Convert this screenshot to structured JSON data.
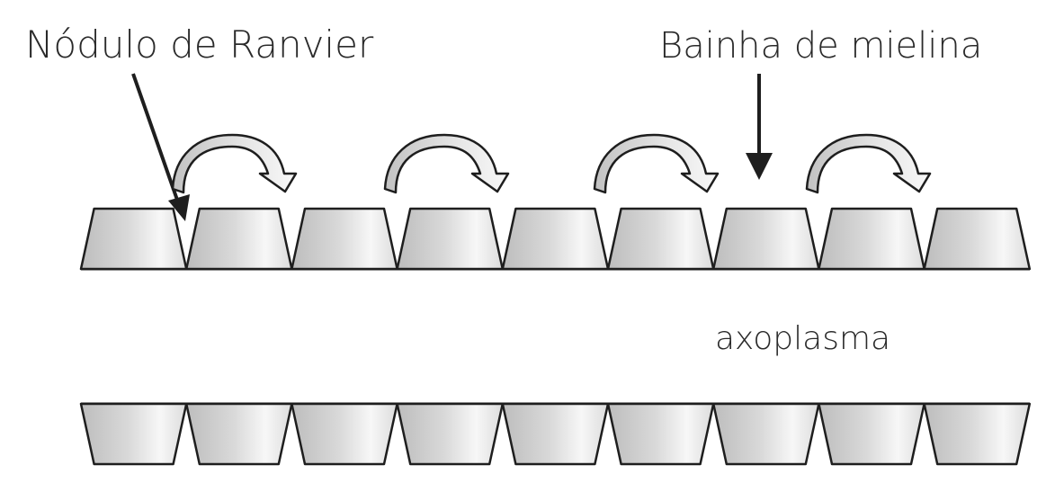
{
  "labels": {
    "node_of_ranvier": "Nódulo de Ranvier",
    "myelin_sheath": "Bainha de mielina",
    "axoplasm": "axoplasma"
  },
  "diagram": {
    "upper_sheath_segments": 9,
    "lower_sheath_segments": 9,
    "saltatory_jump_arrows": 4
  },
  "colors": {
    "line": "#1e1e1e",
    "segment_shade_dark": "#b8b8b8",
    "segment_shade_light": "#f7f7f7",
    "background": "#ffffff"
  }
}
